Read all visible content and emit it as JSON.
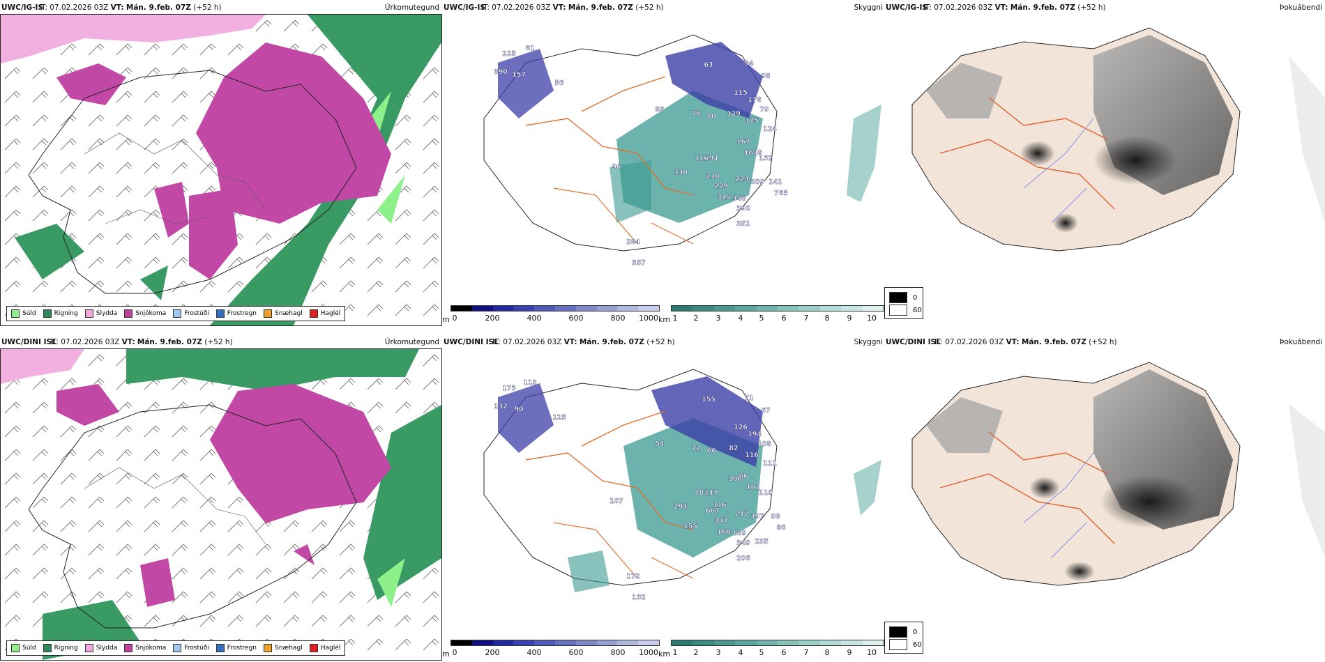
{
  "header": {
    "issue_prefix": "IT:",
    "issue_time": "07.02.2026 03Z",
    "valid_prefix": "VT:",
    "valid_time": "Mán. 9.feb. 07Z",
    "lead": "(+52 h)"
  },
  "models": {
    "ig": "UWC/IG-IS",
    "dini": "UWC/DINI ISL"
  },
  "params": {
    "precip_type": "Úrkomutegund",
    "cloud": "Skyggni",
    "fog": "Þokuábendi"
  },
  "precip_legend": [
    {
      "label": "Súld",
      "color": "#8ef08a"
    },
    {
      "label": "Rigning",
      "color": "#2e8b57"
    },
    {
      "label": "Slydda",
      "color": "#f0a8dc"
    },
    {
      "label": "Snjókoma",
      "color": "#c040a0"
    },
    {
      "label": "Frostúði",
      "color": "#9ec8f0"
    },
    {
      "label": "Frostregn",
      "color": "#3070c0"
    },
    {
      "label": "Snæhagl",
      "color": "#f0a020"
    },
    {
      "label": "Haglél",
      "color": "#e02020"
    }
  ],
  "colors": {
    "rain": "#3a9a64",
    "snow": "#c248a6",
    "sleet": "#f2b0e0",
    "drizzle": "#8ef08a",
    "land_fog": "#f2e4d8",
    "roads": "#e07030",
    "cloud_base": "#3c3fa8",
    "visibility": "#3a9a90"
  },
  "elev_scale": {
    "unit": "m",
    "ticks": [
      "0",
      "200",
      "400",
      "600",
      "800",
      "1000"
    ],
    "colors": [
      "#000000",
      "#101080",
      "#202aa0",
      "#3a40b0",
      "#5058b8",
      "#6870c0",
      "#8088c8",
      "#98a0d0",
      "#b0b8dc",
      "#c8ccea"
    ]
  },
  "vis_scale": {
    "unit": "km",
    "ticks": [
      "1",
      "2",
      "3",
      "4",
      "5",
      "6",
      "7",
      "8",
      "9",
      "10"
    ],
    "colors": [
      "#2a7a70",
      "#3a8a80",
      "#4a9890",
      "#5ca69e",
      "#70b4ac",
      "#86c2ba",
      "#9ccec8",
      "#b2dad6",
      "#c8e6e2",
      "#e0f2f0"
    ]
  },
  "fog_legend": {
    "dark_label": "0",
    "light_label": "60"
  },
  "top_values": [
    "225",
    "61",
    "390",
    "157",
    "56",
    "63",
    "94",
    "98",
    "89",
    "76",
    "80",
    "115",
    "129",
    "178",
    "125",
    "79",
    "124",
    "167",
    "1649",
    "152",
    "294",
    "130",
    "116",
    "210",
    "229",
    "224",
    "309",
    "141",
    "765",
    "315",
    "346",
    "390",
    "351",
    "284",
    "337",
    "96"
  ],
  "bottom_values": [
    "175",
    "113",
    "132",
    "90",
    "125",
    "155",
    "71",
    "67",
    "54",
    "72",
    "66",
    "126",
    "82",
    "194",
    "116",
    "108",
    "111",
    "66",
    "102",
    "119",
    "117",
    "294",
    "283",
    "607",
    "347",
    "212",
    "397",
    "98",
    "86",
    "160",
    "189",
    "349",
    "206",
    "172",
    "132",
    "107",
    "235",
    "306",
    "116",
    "155"
  ]
}
